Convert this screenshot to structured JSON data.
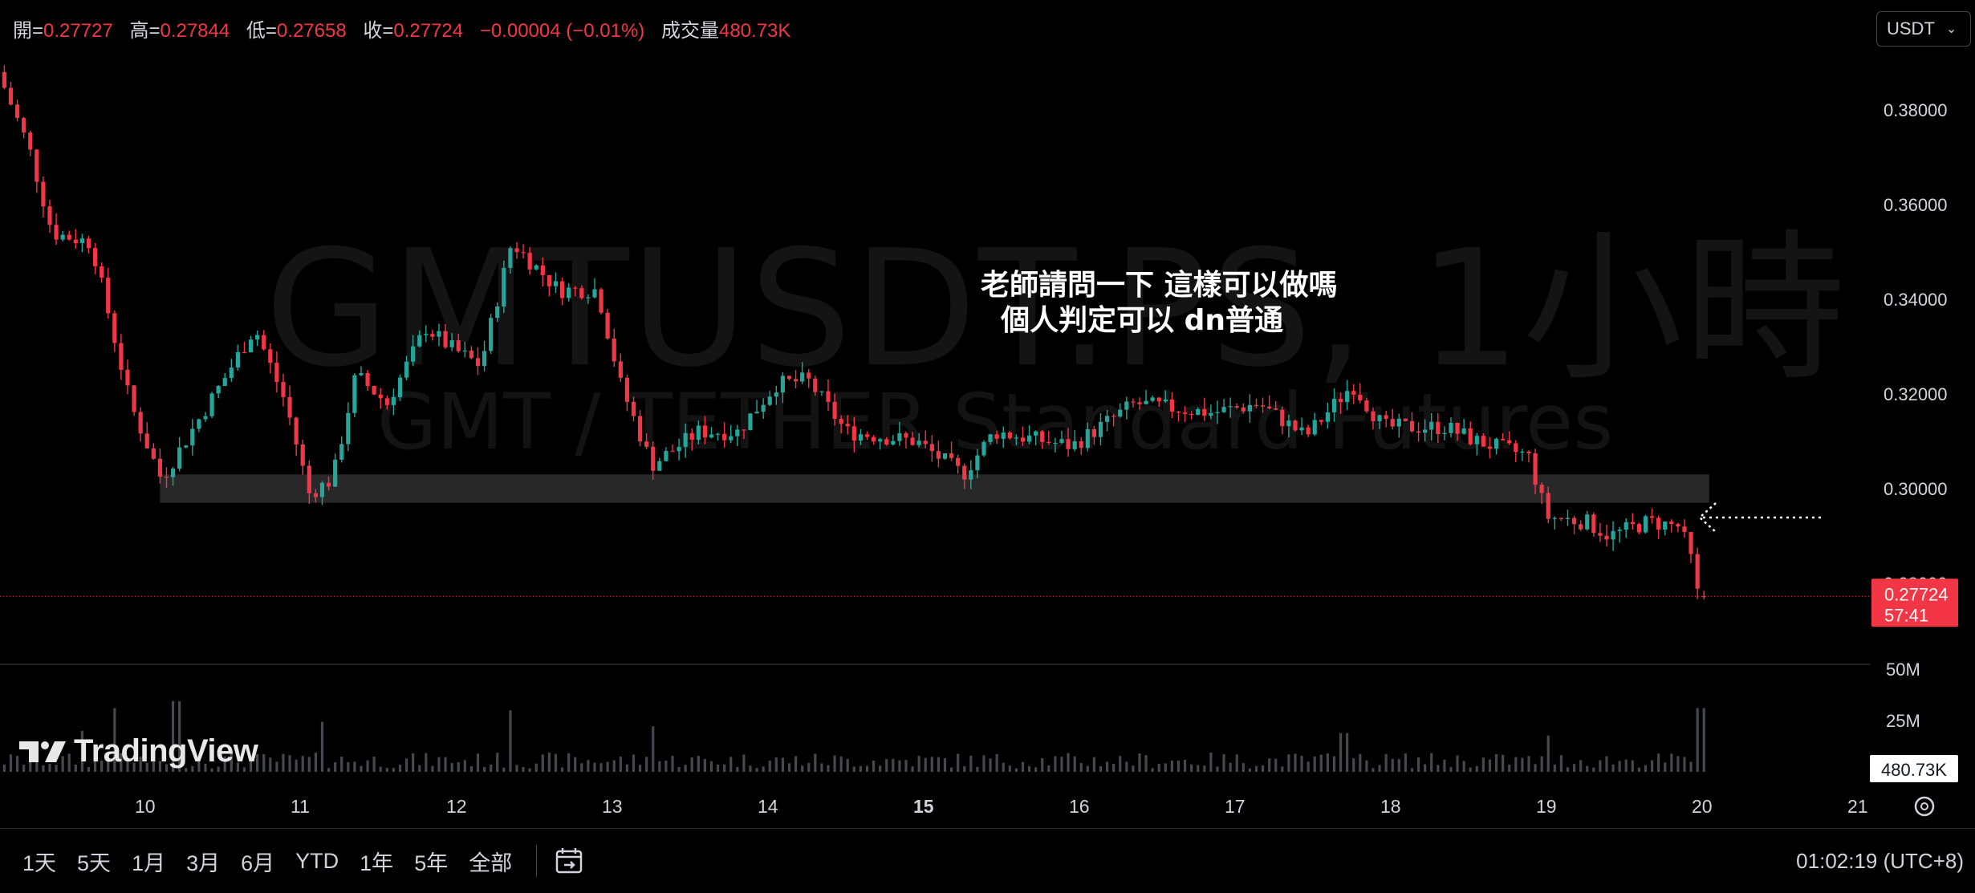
{
  "ohlc": {
    "open_label": "開=",
    "open": "0.27727",
    "high_label": "高=",
    "high": "0.27844",
    "low_label": "低=",
    "low": "0.27658",
    "close_label": "收=",
    "close": "0.27724",
    "change": "−0.00004 (−0.01%)",
    "volume_label": "成交量",
    "volume": "480.73K"
  },
  "currency": "USDT",
  "watermark": {
    "symbol": "GMTUSDT.PS, 1小時",
    "description": "GMT / TETHER Standard Futures"
  },
  "annotation": {
    "line1": "老師請問一下 這樣可以做嗎",
    "line2": "  個人判定可以 dn普通"
  },
  "price_axis": {
    "ticks": [
      "0.38000",
      "0.36000",
      "0.34000",
      "0.32000",
      "0.30000",
      "0.28000"
    ],
    "last_price": "0.27724",
    "countdown": "57:41"
  },
  "volume_axis": {
    "ticks": [
      "50M",
      "25M"
    ],
    "last_volume": "480.73K"
  },
  "time_axis": {
    "ticks": [
      "10",
      "11",
      "12",
      "13",
      "14",
      "15",
      "16",
      "17",
      "18",
      "19",
      "20",
      "21"
    ]
  },
  "range_buttons": [
    "1天",
    "5天",
    "1月",
    "3月",
    "6月",
    "YTD",
    "1年",
    "5年",
    "全部"
  ],
  "clock": "01:02:19 (UTC+8)",
  "logo_text": "TradingView",
  "colors": {
    "up": "#26a69a",
    "down": "#f23645",
    "background": "#000000",
    "zone": "#2a2a2a"
  },
  "chart_data": {
    "type": "candlestick",
    "interval": "1小時",
    "x_day_ticks": [
      10,
      11,
      12,
      13,
      14,
      15,
      16,
      17,
      18,
      19,
      20,
      21
    ],
    "ylim": [
      0.274,
      0.39
    ],
    "support_zone": {
      "from_day": 10.1,
      "to_day": 20.05,
      "low": 0.297,
      "high": 0.303
    },
    "anchors": [
      {
        "day": 9.1,
        "price": 0.388
      },
      {
        "day": 9.3,
        "price": 0.372
      },
      {
        "day": 9.45,
        "price": 0.354
      },
      {
        "day": 9.7,
        "price": 0.352
      },
      {
        "day": 9.95,
        "price": 0.318
      },
      {
        "day": 10.15,
        "price": 0.302
      },
      {
        "day": 10.55,
        "price": 0.323
      },
      {
        "day": 10.75,
        "price": 0.334
      },
      {
        "day": 10.95,
        "price": 0.318
      },
      {
        "day": 11.1,
        "price": 0.299
      },
      {
        "day": 11.25,
        "price": 0.302
      },
      {
        "day": 11.4,
        "price": 0.324
      },
      {
        "day": 11.6,
        "price": 0.318
      },
      {
        "day": 11.85,
        "price": 0.334
      },
      {
        "day": 12.0,
        "price": 0.33
      },
      {
        "day": 12.2,
        "price": 0.326
      },
      {
        "day": 12.4,
        "price": 0.352
      },
      {
        "day": 12.7,
        "price": 0.342
      },
      {
        "day": 12.95,
        "price": 0.342
      },
      {
        "day": 13.1,
        "price": 0.322
      },
      {
        "day": 13.3,
        "price": 0.305
      },
      {
        "day": 13.6,
        "price": 0.312
      },
      {
        "day": 13.85,
        "price": 0.312
      },
      {
        "day": 14.1,
        "price": 0.322
      },
      {
        "day": 14.3,
        "price": 0.323
      },
      {
        "day": 14.55,
        "price": 0.312
      },
      {
        "day": 15.0,
        "price": 0.31
      },
      {
        "day": 15.3,
        "price": 0.303
      },
      {
        "day": 15.5,
        "price": 0.312
      },
      {
        "day": 16.0,
        "price": 0.309
      },
      {
        "day": 16.4,
        "price": 0.318
      },
      {
        "day": 16.9,
        "price": 0.316
      },
      {
        "day": 17.2,
        "price": 0.318
      },
      {
        "day": 17.5,
        "price": 0.311
      },
      {
        "day": 17.8,
        "price": 0.322
      },
      {
        "day": 18.0,
        "price": 0.313
      },
      {
        "day": 18.4,
        "price": 0.313
      },
      {
        "day": 18.6,
        "price": 0.31
      },
      {
        "day": 18.93,
        "price": 0.307
      },
      {
        "day": 19.05,
        "price": 0.294
      },
      {
        "day": 19.3,
        "price": 0.293
      },
      {
        "day": 19.45,
        "price": 0.29
      },
      {
        "day": 19.7,
        "price": 0.293
      },
      {
        "day": 19.9,
        "price": 0.292
      },
      {
        "day": 19.97,
        "price": 0.286
      },
      {
        "day": 20.02,
        "price": 0.2772
      }
    ],
    "volume_spikes": [
      {
        "day": 9.6,
        "volume": 18000000
      },
      {
        "day": 9.8,
        "volume": 28000000
      },
      {
        "day": 10.2,
        "volume": 31000000
      },
      {
        "day": 11.15,
        "volume": 22000000
      },
      {
        "day": 12.35,
        "volume": 27000000
      },
      {
        "day": 13.25,
        "volume": 20000000
      },
      {
        "day": 17.7,
        "volume": 17000000
      },
      {
        "day": 19.0,
        "volume": 16000000
      },
      {
        "day": 20.0,
        "volume": 28000000
      }
    ],
    "last": {
      "open": 0.27727,
      "high": 0.27844,
      "low": 0.27658,
      "close": 0.27724,
      "volume": 480730
    }
  }
}
